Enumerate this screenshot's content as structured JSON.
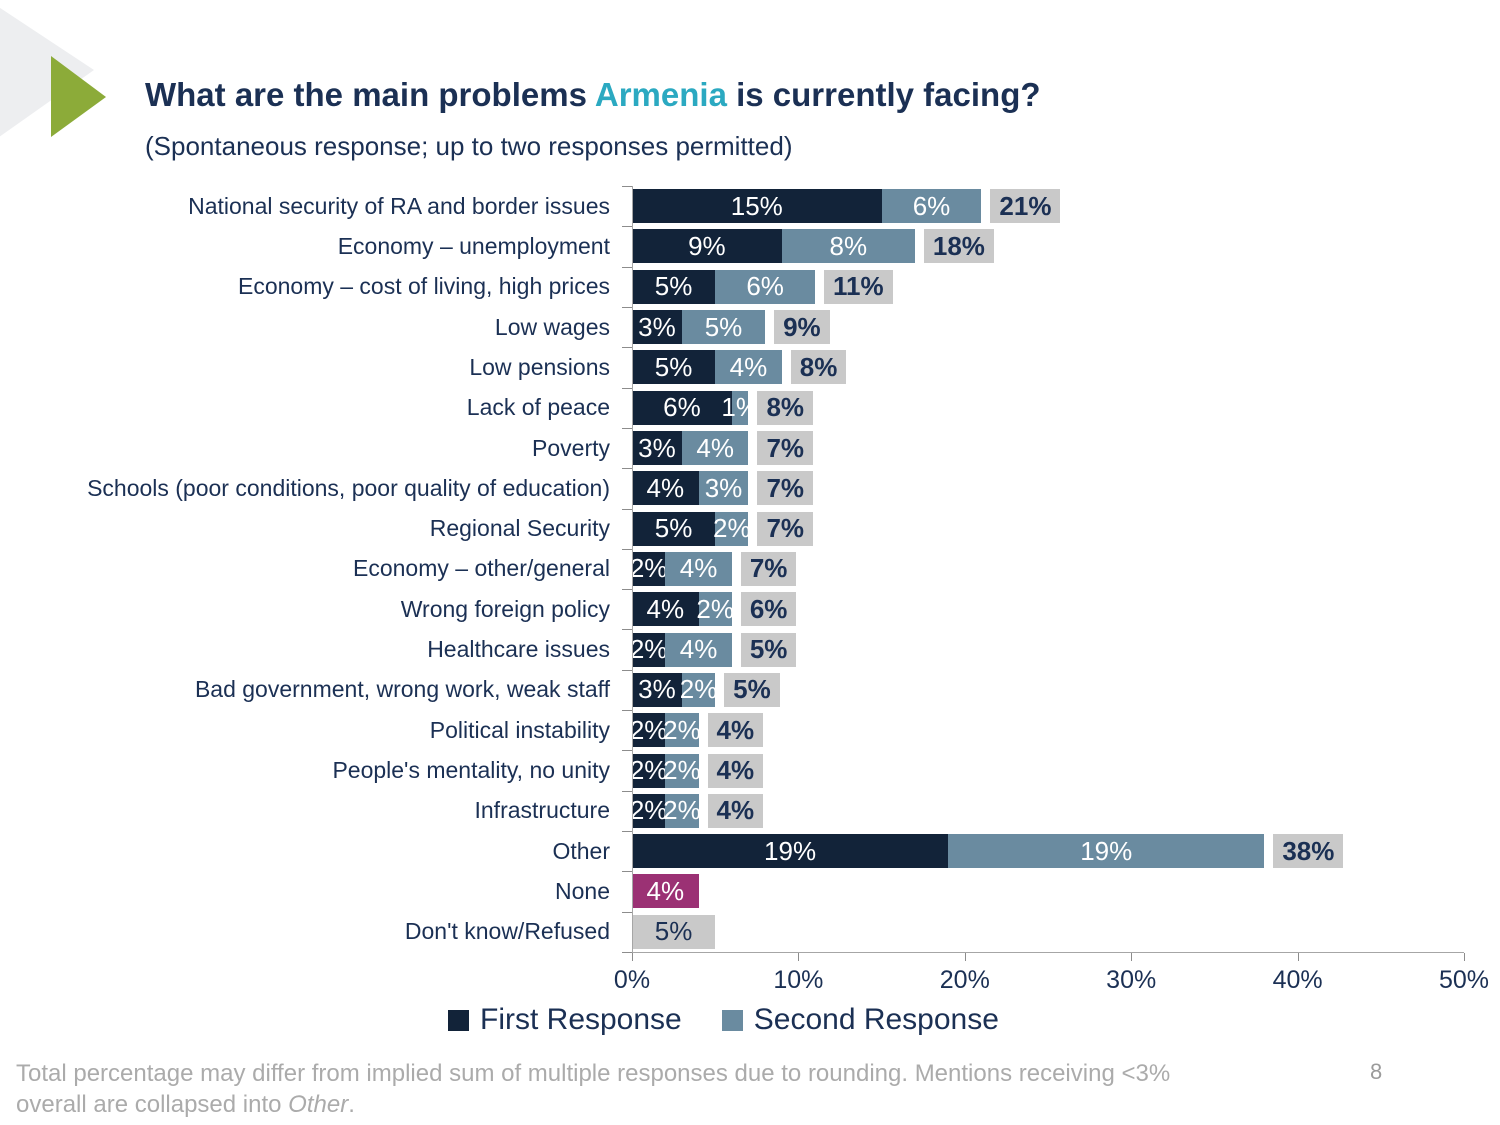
{
  "slide": {
    "title": {
      "prefix": "What are the main problems ",
      "highlight": "Armenia",
      "suffix": " is currently facing?"
    },
    "subtitle": "(Spontaneous response; up to two responses permitted)",
    "page_number": "8",
    "footnote": {
      "line1": "Total percentage may differ from implied sum of multiple responses due to rounding. Mentions receiving <3%",
      "line2_before_italic": "overall are collapsed into ",
      "line2_italic": "Other",
      "line2_after_italic": "."
    }
  },
  "colors": {
    "first_response": "#122339",
    "second_response": "#6A8BA0",
    "none_bar": "#9B3174",
    "dont_know_bar": "#C9C9C9",
    "total_chip_bg": "#C9C9C9",
    "text_navy": "#1B3054",
    "accent_teal": "#2BA9C1",
    "arrow_green": "#8CAB39",
    "decor_gray": "#EDEEF0",
    "value_text_light": "#ffffff"
  },
  "chart_data": {
    "type": "bar",
    "orientation": "horizontal",
    "stacked": true,
    "title": "What are the main problems Armenia is currently facing?",
    "xlabel": "",
    "ylabel": "",
    "xlim": [
      0,
      50
    ],
    "x_ticks": [
      "0%",
      "10%",
      "20%",
      "30%",
      "40%",
      "50%"
    ],
    "grid": false,
    "legend_position": "bottom",
    "legend": [
      {
        "label": "First Response",
        "color": "#122339"
      },
      {
        "label": "Second Response",
        "color": "#6A8BA0"
      }
    ],
    "value_unit": "%",
    "rows": [
      {
        "category": "National security of RA and border issues",
        "first": 15,
        "second": 6,
        "total": 21
      },
      {
        "category": "Economy – unemployment",
        "first": 9,
        "second": 8,
        "total": 18
      },
      {
        "category": "Economy – cost of living, high prices",
        "first": 5,
        "second": 6,
        "total": 11
      },
      {
        "category": "Low wages",
        "first": 3,
        "second": 5,
        "total": 9
      },
      {
        "category": "Low pensions",
        "first": 5,
        "second": 4,
        "total": 8
      },
      {
        "category": "Lack of peace",
        "first": 6,
        "second": 1,
        "total": 8
      },
      {
        "category": "Poverty",
        "first": 3,
        "second": 4,
        "total": 7
      },
      {
        "category": "Schools (poor conditions, poor quality of education)",
        "first": 4,
        "second": 3,
        "total": 7
      },
      {
        "category": "Regional Security",
        "first": 5,
        "second": 2,
        "total": 7
      },
      {
        "category": "Economy – other/general",
        "first": 2,
        "second": 4,
        "total": 7
      },
      {
        "category": "Wrong foreign policy",
        "first": 4,
        "second": 2,
        "total": 6
      },
      {
        "category": "Healthcare issues",
        "first": 2,
        "second": 4,
        "total": 5
      },
      {
        "category": "Bad government, wrong work, weak staff",
        "first": 3,
        "second": 2,
        "total": 5
      },
      {
        "category": "Political instability",
        "first": 2,
        "second": 2,
        "total": 4
      },
      {
        "category": "People's mentality, no unity",
        "first": 2,
        "second": 2,
        "total": 4
      },
      {
        "category": "Infrastructure",
        "first": 2,
        "second": 2,
        "total": 4
      },
      {
        "category": "Other",
        "first": 19,
        "second": 19,
        "total": 38
      },
      {
        "category": "None",
        "single": 4,
        "style": "none"
      },
      {
        "category": "Don't know/Refused",
        "single": 5,
        "style": "dont_know"
      }
    ]
  }
}
